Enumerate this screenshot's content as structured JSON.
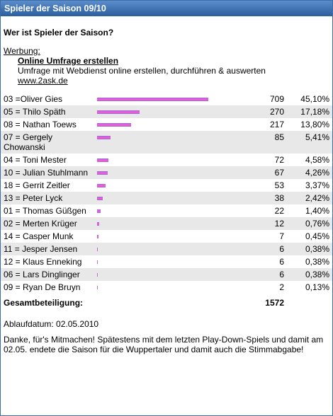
{
  "header": {
    "title": "Spieler der Saison 09/10"
  },
  "question": "Wer ist Spieler der Saison?",
  "ad": {
    "label": "Werbung:",
    "title": "Online Umfrage erstellen",
    "text": "Umfrage mit Webdienst online erstellen, durchführen & auswerten",
    "url": "www.2ask.de"
  },
  "table": {
    "rows": [
      {
        "name": "03 =Oliver Gies",
        "votes": 709,
        "percent": "45,10%"
      },
      {
        "name": "05 = Thilo Späth",
        "votes": 270,
        "percent": "17,18%"
      },
      {
        "name": "08 = Nathan Toews",
        "votes": 217,
        "percent": "13,80%"
      },
      {
        "name": "07 = Gergely Chowanski",
        "votes": 85,
        "percent": "5,41%"
      },
      {
        "name": "04 = Toni Mester",
        "votes": 72,
        "percent": "4,58%"
      },
      {
        "name": "10 = Julian Stuhlmann",
        "votes": 67,
        "percent": "4,26%"
      },
      {
        "name": "18 = Gerrit Zeitler",
        "votes": 53,
        "percent": "3,37%"
      },
      {
        "name": "13 = Peter Lyck",
        "votes": 38,
        "percent": "2,42%"
      },
      {
        "name": "01 = Thomas Güßgen",
        "votes": 22,
        "percent": "1,40%"
      },
      {
        "name": "02 = Merten Krüger",
        "votes": 12,
        "percent": "0,76%"
      },
      {
        "name": "14 = Casper Munk",
        "votes": 7,
        "percent": "0,45%"
      },
      {
        "name": "11 = Jesper Jensen",
        "votes": 6,
        "percent": "0,38%"
      },
      {
        "name": "12 = Klaus Enneking",
        "votes": 6,
        "percent": "0,38%"
      },
      {
        "name": "06 = Lars Dinglinger",
        "votes": 6,
        "percent": "0,38%"
      },
      {
        "name": "09 = Ryan De Bruyn",
        "votes": 2,
        "percent": "0,13%"
      }
    ],
    "total_label": "Gesamtbeteiligung:",
    "total": 1572
  },
  "footer": {
    "expiry": "Ablaufdatum: 02.05.2010",
    "note": "Danke, für's Mitmachen! Spätestens mit dem letzten Play-Down-Spiels und damit am 02.05. endete die Saison für die Wuppertaler und damit auch die Stimmabgabe!"
  }
}
